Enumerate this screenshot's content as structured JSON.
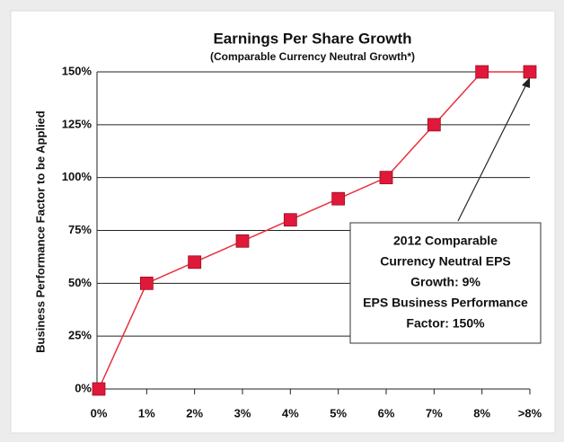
{
  "chart_data": {
    "type": "line",
    "title": "Earnings Per Share Growth",
    "subtitle": "(Comparable Currency Neutral Growth*)",
    "y_label": "Business Performance Factor to be Applied",
    "categories": [
      "0%",
      "1%",
      "2%",
      "3%",
      "4%",
      "5%",
      "6%",
      "7%",
      "8%",
      ">8%"
    ],
    "values": [
      0,
      50,
      60,
      70,
      80,
      90,
      100,
      125,
      150,
      150
    ],
    "color": "#e8303c",
    "marker_color": "#e0183a",
    "ylim": [
      0,
      150
    ],
    "yticks": [
      {
        "value": 0,
        "label": "0%"
      },
      {
        "value": 25,
        "label": "25%"
      },
      {
        "value": 50,
        "label": "50%"
      },
      {
        "value": 75,
        "label": "75%"
      },
      {
        "value": 100,
        "label": "100%"
      },
      {
        "value": 125,
        "label": "125%"
      },
      {
        "value": 150,
        "label": "150%"
      }
    ],
    "grid": true,
    "annotation": [
      "2012 Comparable",
      "Currency Neutral EPS",
      "Growth: 9%",
      "EPS Business Performance",
      "Factor: 150%"
    ]
  }
}
